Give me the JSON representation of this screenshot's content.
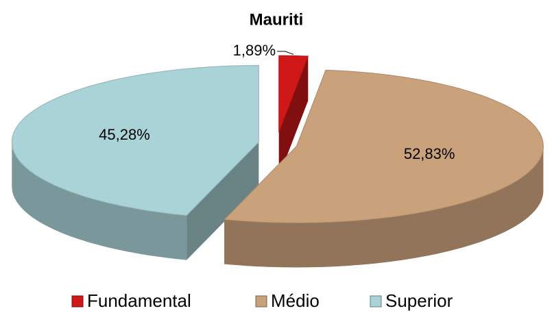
{
  "chart_data": {
    "type": "pie",
    "title": "Mauriti",
    "categories": [
      "Fundamental",
      "Médio",
      "Superior"
    ],
    "values": [
      1.89,
      52.83,
      45.28
    ],
    "value_labels": [
      "1,89%",
      "52,83%",
      "45,28%"
    ],
    "colors": [
      "#d01818",
      "#c9a17b",
      "#a9d3d7"
    ],
    "legend": "bottom"
  }
}
